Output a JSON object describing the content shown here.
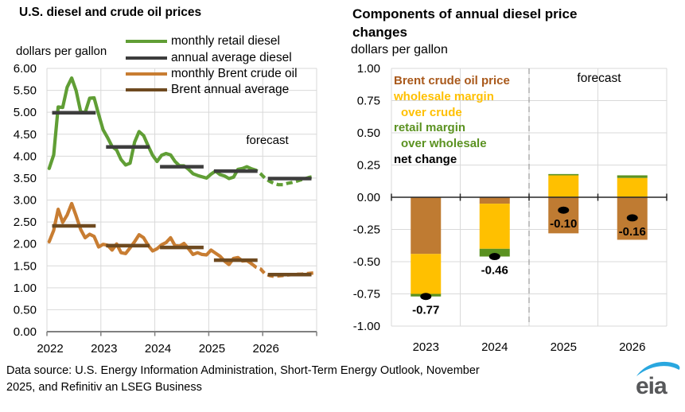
{
  "left_chart": {
    "title": "U.S. diesel and crude oil prices",
    "unit_label": "dollars per gallon",
    "forecast_label": "forecast",
    "legend": [
      {
        "label": "monthly retail diesel",
        "color": "#609E35"
      },
      {
        "label": "annual average diesel",
        "color": "#3D3D3D"
      },
      {
        "label": "monthly Brent crude oil",
        "color": "#C87D32"
      },
      {
        "label": "Brent annual average",
        "color": "#6E4A20"
      }
    ]
  },
  "right_chart": {
    "title": "Components of annual diesel price changes",
    "unit_label": "dollars per gallon",
    "forecast_label": "forecast",
    "legend_lines": [
      {
        "text": "Brent crude oil price",
        "color": "#A9591B",
        "indent": false
      },
      {
        "text": "wholesale margin",
        "color": "#FFC000",
        "indent": false
      },
      {
        "text": "over crude",
        "color": "#FFC000",
        "indent": true
      },
      {
        "text": "retail margin",
        "color": "#5B9221",
        "indent": false
      },
      {
        "text": "over wholesale",
        "color": "#5B9221",
        "indent": true
      },
      {
        "text": "net change",
        "color": "#000000",
        "indent": false
      }
    ]
  },
  "chart_data": [
    {
      "type": "line",
      "title": "U.S. diesel and crude oil prices",
      "ylabel": "dollars per gallon",
      "ylim": [
        0,
        6
      ],
      "ytick_labels": [
        "6.00",
        "5.50",
        "5.00",
        "4.50",
        "4.00",
        "3.50",
        "3.00",
        "2.50",
        "2.00",
        "1.50",
        "1.00",
        "0.50",
        "0.00"
      ],
      "x_tick_labels": [
        "2022",
        "2023",
        "2024",
        "2025",
        "2026"
      ],
      "forecast_label": "forecast",
      "forecast_start_index": 45,
      "series": [
        {
          "name": "monthly retail diesel",
          "render": "monthly-line",
          "color": "#609E35",
          "values": [
            3.72,
            4.03,
            5.12,
            5.11,
            5.57,
            5.78,
            5.49,
            5.01,
            4.99,
            5.32,
            5.33,
            4.95,
            4.6,
            4.42,
            4.22,
            4.14,
            3.92,
            3.8,
            3.84,
            4.32,
            4.56,
            4.47,
            4.24,
            4.02,
            3.88,
            4.02,
            4.06,
            4.03,
            3.88,
            3.78,
            3.78,
            3.7,
            3.6,
            3.56,
            3.53,
            3.5,
            3.59,
            3.66,
            3.58,
            3.55,
            3.49,
            3.52,
            3.7,
            3.72,
            3.76,
            3.71,
            3.68,
            3.6,
            3.5,
            3.43,
            3.38,
            3.35,
            3.35,
            3.38,
            3.4,
            3.43,
            3.46,
            3.49,
            3.52,
            3.54
          ]
        },
        {
          "name": "annual average diesel",
          "render": "annual-segments",
          "color": "#3D3D3D",
          "values": [
            4.99,
            4.21,
            3.76,
            3.66,
            3.49
          ]
        },
        {
          "name": "monthly Brent crude oil",
          "render": "monthly-line",
          "color": "#C87D32",
          "values": [
            2.05,
            2.31,
            2.79,
            2.49,
            2.66,
            2.92,
            2.64,
            2.33,
            2.14,
            2.22,
            2.17,
            1.93,
            1.99,
            1.97,
            1.86,
            2.0,
            1.8,
            1.78,
            1.91,
            2.05,
            2.21,
            2.14,
            1.97,
            1.84,
            1.89,
            1.98,
            2.03,
            2.14,
            1.96,
            1.95,
            2.01,
            1.89,
            1.76,
            1.8,
            1.76,
            1.75,
            1.86,
            1.79,
            1.72,
            1.61,
            1.53,
            1.67,
            1.69,
            1.61,
            1.62,
            1.55,
            1.47,
            1.43,
            1.32,
            1.28,
            1.26,
            1.27,
            1.28,
            1.29,
            1.3,
            1.31,
            1.31,
            1.32,
            1.33,
            1.34
          ]
        },
        {
          "name": "Brent annual average",
          "render": "annual-segments",
          "color": "#6E4A20",
          "values": [
            2.41,
            1.96,
            1.92,
            1.63,
            1.3
          ]
        }
      ]
    },
    {
      "type": "stacked-bar",
      "title": "Components of annual diesel price changes",
      "ylabel": "dollars per gallon",
      "ylim": [
        -1,
        1
      ],
      "ytick_labels": [
        "1.00",
        "0.75",
        "0.50",
        "0.25",
        "0.00",
        "-0.25",
        "-0.50",
        "-0.75",
        "-1.00"
      ],
      "categories": [
        "2023",
        "2024",
        "2025",
        "2026"
      ],
      "forecast_divider_after_category": "2024",
      "forecast_label": "forecast",
      "series": [
        {
          "name": "Brent crude oil price",
          "color": "#BF7B32",
          "values": [
            -0.44,
            -0.05,
            -0.28,
            -0.33
          ]
        },
        {
          "name": "wholesale margin over crude",
          "color": "#FFC000",
          "values": [
            -0.31,
            -0.35,
            0.17,
            0.15
          ]
        },
        {
          "name": "retail margin over wholesale",
          "color": "#5B9221",
          "values": [
            -0.02,
            -0.06,
            0.01,
            0.02
          ]
        }
      ],
      "net_change": {
        "name": "net change",
        "color": "#000000",
        "values": [
          -0.77,
          -0.46,
          -0.1,
          -0.16
        ],
        "labels": [
          "-0.77",
          "-0.46",
          "-0.10",
          "-0.16"
        ]
      }
    }
  ],
  "footer": {
    "line1": "Data source: U.S. Energy Information Administration, Short-Term Energy Outlook, November",
    "line2": "2025, and Refinitiv an LSEG Business",
    "logo_text": "eia",
    "logo_text_color": "#57585A",
    "logo_swoosh_color": "#29A7DF"
  }
}
